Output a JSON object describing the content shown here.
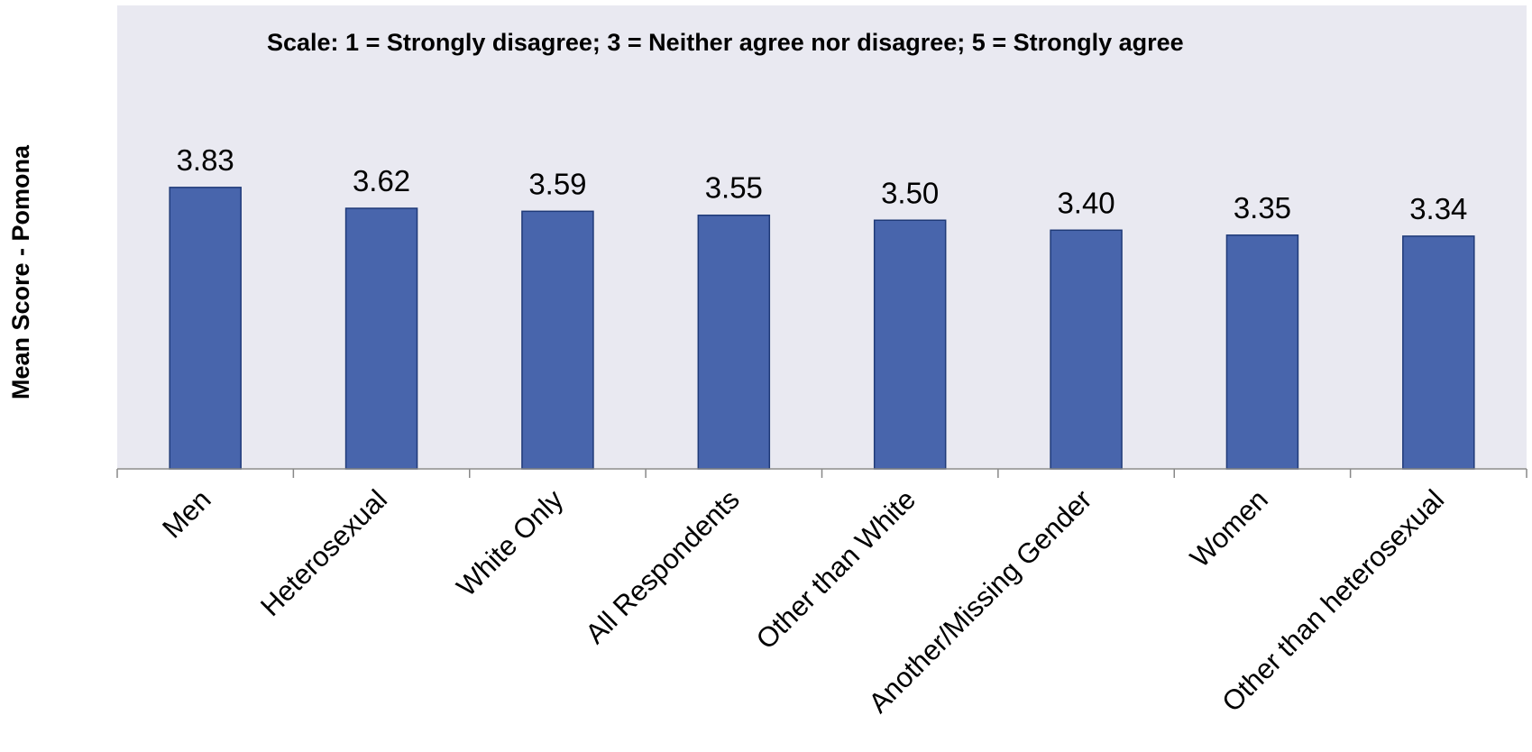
{
  "chart_data": {
    "type": "bar",
    "categories": [
      "Men",
      "Heterosexual",
      "White Only",
      "All Respondents",
      "Other than White",
      "Another/Missing Gender",
      "Women",
      "Other than heterosexual"
    ],
    "values": [
      3.83,
      3.62,
      3.59,
      3.55,
      3.5,
      3.4,
      3.35,
      3.34
    ],
    "data_labels": [
      "3.83",
      "3.62",
      "3.59",
      "3.55",
      "3.50",
      "3.40",
      "3.35",
      "3.34"
    ],
    "annotation": "Scale: 1 = Strongly disagree; 3 = Neither agree nor disagree; 5 = Strongly agree",
    "ylabel": "Mean Score - Pomona",
    "xlabel": "",
    "title": "",
    "ylim": [
      1,
      4.3
    ],
    "grid": false,
    "legend": "none",
    "colors": {
      "bar_fill": "#4865AC",
      "bar_stroke": "#1F3A78",
      "plot_background": "#E9E9F1",
      "axis": "#888888"
    }
  }
}
